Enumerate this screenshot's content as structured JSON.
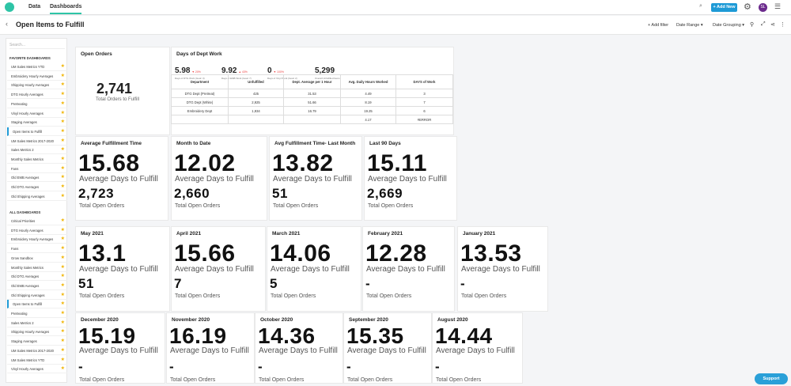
{
  "top_tabs": [
    "Data",
    "Dashboards"
  ],
  "add_new": "+ Add New",
  "avatar": "SL",
  "page_title": "Open Items to Fulfill",
  "header_controls": {
    "add_filter": "+ Add filter",
    "date_range": "Date Range ▾",
    "date_grouping": "Date Grouping ▾"
  },
  "sidebar": {
    "search_placeholder": "Search...",
    "favorites_header": "FAVORITE DASHBOARDS",
    "favorites": [
      "UM Sales Metrics YTD",
      "Embroidery Hourly Averages",
      "Shipping Hourly Averages",
      "DTG Hourly Averages",
      "Pretreating",
      "Vinyl Hourly Averages",
      "Staging Averages",
      "Open Items to Fulfill",
      "UM Sales Metrics 2017-2020",
      "Sales Metrics 2",
      "Monthly Sales Metrics",
      "Fans",
      "Old EMB Averages",
      "Old DTG Averages",
      "Old Shipping Averages"
    ],
    "all_header": "ALL DASHBOARDS",
    "all": [
      "Critical Priorities",
      "DTG Hourly Averages",
      "Embroidery Hourly Averages",
      "Fans",
      "Grow Sandbox",
      "Monthly Sales Metrics",
      "Old DTG Averages",
      "Old EMB Averages",
      "Old Shipping Averages",
      "Open Items to Fulfill",
      "Pretreating",
      "Sales Metrics 2",
      "Shipping Hourly Averages",
      "Staging Averages",
      "UM Sales Metrics 2017-2020",
      "UM Sales Metrics YTD",
      "Vinyl Hourly Averages"
    ]
  },
  "open_orders": {
    "title": "Open Orders",
    "value": "2,741",
    "label": "Total Orders to Fulfill"
  },
  "dept_work": {
    "title": "Days of Dept Work",
    "kpis": [
      {
        "value": "5.98",
        "delta": "▼ 20%",
        "label": "Days of DTG Work (Goal: 3)"
      },
      {
        "value": "9.92",
        "delta": "▲ 43%",
        "label": "Days of EMB Work (Goal: 7)"
      },
      {
        "value": "0",
        "delta": "▼ 100%",
        "label": "Days of Vinyl Work (Goal: 2)"
      },
      {
        "value": "5,299",
        "delta": "",
        "label": "Overall Unfulfilled Items"
      }
    ],
    "headers": [
      "Department",
      "Unfulfilled",
      "Dept. Average per 1 Hour",
      "Avg. Daily Hours Worked",
      "DAYS of Work"
    ],
    "rows": [
      [
        "DTG Dept (Pretreat)",
        "425",
        "31.53",
        "4.49",
        "3"
      ],
      [
        "DTG Dept (White)",
        "2,925",
        "51.66",
        "8.19",
        "7"
      ],
      [
        "Embroidery Dept",
        "1,934",
        "16.79",
        "19.25",
        "6"
      ],
      [
        "",
        "",
        "",
        "4.17",
        "#ERROR"
      ]
    ]
  },
  "metric_cards": [
    {
      "title": "Average Fulfillment Time",
      "value": "15.68",
      "sub": "Average Days to Fulfill",
      "count": "2,723",
      "count_label": "Total Open Orders"
    },
    {
      "title": "Month to Date",
      "value": "12.02",
      "sub": "Average Days to Fulfill",
      "count": "2,660",
      "count_label": "Total Open Orders"
    },
    {
      "title": "Avg Fulfillment Time- Last Month",
      "value": "13.82",
      "sub": "Average Days to Fulfill",
      "count": "51",
      "count_label": "Total Open Orders"
    },
    {
      "title": "Last 90 Days",
      "value": "15.11",
      "sub": "Average Days to Fulfill",
      "count": "2,669",
      "count_label": "Total Open Orders"
    },
    {
      "title": "May 2021",
      "value": "13.1",
      "sub": "Average Days to Fulfill",
      "count": "51",
      "count_label": "Total Open Orders"
    },
    {
      "title": "April 2021",
      "value": "15.66",
      "sub": "Average Days to Fulfill",
      "count": "7",
      "count_label": "Total Open Orders"
    },
    {
      "title": "March 2021",
      "value": "14.06",
      "sub": "Average Days to Fulfill",
      "count": "5",
      "count_label": "Total Open Orders"
    },
    {
      "title": "February 2021",
      "value": "12.28",
      "sub": "Average Days to Fulfill",
      "count": "-",
      "count_label": "Total Open Orders"
    },
    {
      "title": "January 2021",
      "value": "13.53",
      "sub": "Average Days to Fulfill",
      "count": "-",
      "count_label": "Total Open Orders"
    },
    {
      "title": "December 2020",
      "value": "15.19",
      "sub": "Average Days to Fulfill",
      "count": "-",
      "count_label": "Total Open Orders"
    },
    {
      "title": "November 2020",
      "value": "16.19",
      "sub": "Average Days to Fulfill",
      "count": "-",
      "count_label": "Total Open Orders"
    },
    {
      "title": "October 2020",
      "value": "14.36",
      "sub": "Average Days to Fulfill",
      "count": "-",
      "count_label": "Total Open Orders"
    },
    {
      "title": "September 2020",
      "value": "15.35",
      "sub": "Average Days to Fulfill",
      "count": "-",
      "count_label": "Total Open Orders"
    },
    {
      "title": "August 2020",
      "value": "14.44",
      "sub": "Average Days to Fulfill",
      "count": "-",
      "count_label": "Total Open Orders"
    }
  ],
  "support": "Support"
}
